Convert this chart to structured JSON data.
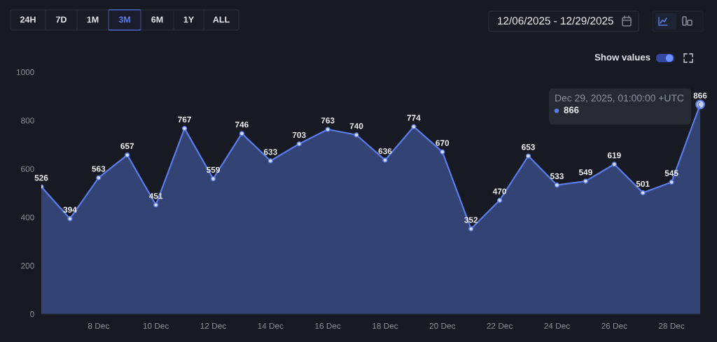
{
  "chart_data": {
    "type": "area",
    "x": [
      "2025-12-06",
      "2025-12-07",
      "2025-12-08",
      "2025-12-09",
      "2025-12-10",
      "2025-12-11",
      "2025-12-12",
      "2025-12-13",
      "2025-12-14",
      "2025-12-15",
      "2025-12-16",
      "2025-12-17",
      "2025-12-18",
      "2025-12-19",
      "2025-12-20",
      "2025-12-21",
      "2025-12-22",
      "2025-12-23",
      "2025-12-24",
      "2025-12-25",
      "2025-12-26",
      "2025-12-27",
      "2025-12-28",
      "2025-12-29"
    ],
    "values": [
      526,
      394,
      563,
      657,
      451,
      767,
      559,
      746,
      633,
      703,
      763,
      740,
      636,
      774,
      670,
      352,
      470,
      653,
      533,
      549,
      619,
      501,
      545,
      866
    ],
    "color": "#5b7be8",
    "marker": "circle",
    "data_labels": true,
    "xlim": [
      "2025-12-06",
      "2025-12-29"
    ],
    "xticks": [
      {
        "value": "2025-12-08",
        "label": "8 Dec"
      },
      {
        "value": "2025-12-10",
        "label": "10 Dec"
      },
      {
        "value": "2025-12-12",
        "label": "12 Dec"
      },
      {
        "value": "2025-12-14",
        "label": "14 Dec"
      },
      {
        "value": "2025-12-16",
        "label": "16 Dec"
      },
      {
        "value": "2025-12-18",
        "label": "18 Dec"
      },
      {
        "value": "2025-12-20",
        "label": "20 Dec"
      },
      {
        "value": "2025-12-22",
        "label": "22 Dec"
      },
      {
        "value": "2025-12-24",
        "label": "24 Dec"
      },
      {
        "value": "2025-12-26",
        "label": "26 Dec"
      },
      {
        "value": "2025-12-28",
        "label": "28 Dec"
      }
    ],
    "ylim": [
      0,
      1000
    ],
    "yticks": [
      0,
      200,
      400,
      600,
      800,
      1000
    ],
    "annotations": [
      "24H",
      "7D",
      "1M",
      "3M",
      "6M",
      "1Y",
      "ALL",
      "12/06/2025 - 12/29/2025",
      "Show values",
      {
        "text": "Dec 29, 2025, 01:00:00 +UTC\n866",
        "x": "2025-12-29",
        "y": 866
      }
    ]
  }
}
